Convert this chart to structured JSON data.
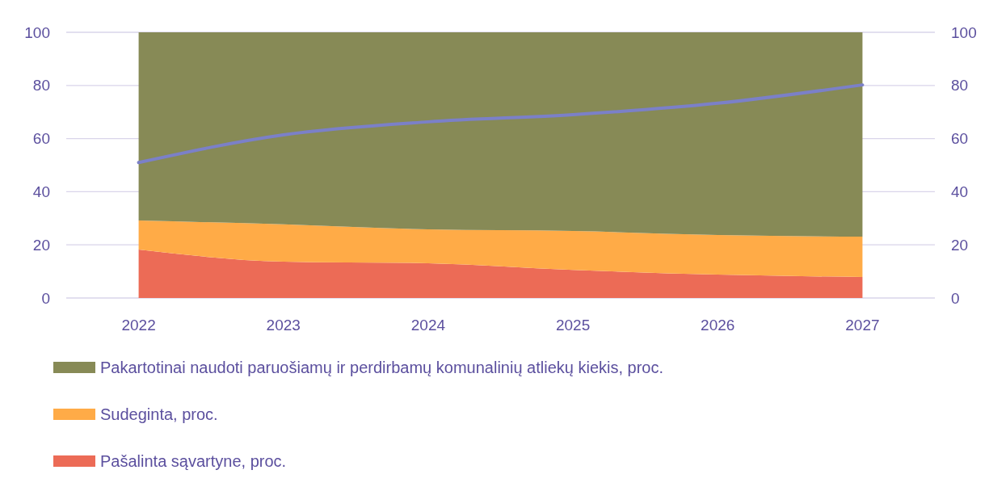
{
  "chart_data": {
    "type": "area",
    "stacked": true,
    "categories": [
      "2022",
      "2023",
      "2024",
      "2025",
      "2026",
      "2027"
    ],
    "ylim": [
      0,
      100
    ],
    "yticks": [
      0,
      20,
      40,
      60,
      80,
      100
    ],
    "y2lim": [
      0,
      100
    ],
    "y2ticks": [
      0,
      20,
      40,
      60,
      80,
      100
    ],
    "grid": "y",
    "legend": "bottom",
    "series": [
      {
        "name": "Pašalinta sąvartyne, proc.",
        "color": "#ec6b56",
        "values": [
          18.2,
          13.7,
          13.1,
          10.6,
          8.8,
          7.9
        ]
      },
      {
        "name": "Sudeginta, proc.",
        "color": "#ffab47",
        "values": [
          11.0,
          14.0,
          12.7,
          14.6,
          14.9,
          15.2
        ]
      },
      {
        "name": "Pakartotinai naudoti paruošiamų ir perdirbamų komunalinių atliekų kiekis, proc.",
        "color": "#878a56",
        "values": [
          70.8,
          72.3,
          74.2,
          74.8,
          76.3,
          76.9
        ]
      },
      {
        "type": "line",
        "color": "#7b80c8",
        "values": [
          51,
          61.4,
          66.3,
          69,
          73.3,
          80.2
        ]
      }
    ]
  }
}
